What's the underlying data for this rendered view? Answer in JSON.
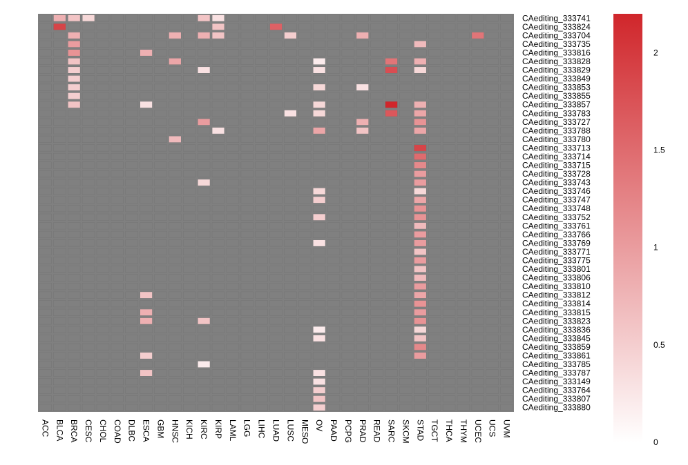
{
  "chart_data": {
    "type": "heatmap",
    "x_categories": [
      "ACC",
      "BLCA",
      "BRCA",
      "CESC",
      "CHOL",
      "COAD",
      "DLBC",
      "ESCA",
      "GBM",
      "HNSC",
      "KICH",
      "KIRC",
      "KIRP",
      "LAML",
      "LGG",
      "LIHC",
      "LUAD",
      "LUSC",
      "MESO",
      "OV",
      "PAAD",
      "PCPG",
      "PRAD",
      "READ",
      "SARC",
      "SKCM",
      "STAD",
      "TGCT",
      "THCA",
      "THYM",
      "UCEC",
      "UCS",
      "UVM"
    ],
    "y_categories": [
      "CAediting_333741",
      "CAediting_333824",
      "CAediting_333704",
      "CAediting_333735",
      "CAediting_333816",
      "CAediting_333828",
      "CAediting_333829",
      "CAediting_333849",
      "CAediting_333853",
      "CAediting_333855",
      "CAediting_333857",
      "CAediting_333783",
      "CAediting_333727",
      "CAediting_333788",
      "CAediting_333780",
      "CAediting_333713",
      "CAediting_333714",
      "CAediting_333715",
      "CAediting_333728",
      "CAediting_333743",
      "CAediting_333746",
      "CAediting_333747",
      "CAediting_333748",
      "CAediting_333752",
      "CAediting_333761",
      "CAediting_333766",
      "CAediting_333769",
      "CAediting_333771",
      "CAediting_333775",
      "CAediting_333801",
      "CAediting_333806",
      "CAediting_333810",
      "CAediting_333812",
      "CAediting_333814",
      "CAediting_333815",
      "CAediting_333823",
      "CAediting_333836",
      "CAediting_333845",
      "CAediting_333859",
      "CAediting_333861",
      "CAediting_333785",
      "CAediting_333787",
      "CAediting_333149",
      "CAediting_333764",
      "CAediting_333807",
      "CAediting_333880"
    ],
    "cells": [
      {
        "row": "CAediting_333741",
        "col": "BLCA",
        "value": 0.8
      },
      {
        "row": "CAediting_333741",
        "col": "BRCA",
        "value": 0.6
      },
      {
        "row": "CAediting_333741",
        "col": "CESC",
        "value": 0.4
      },
      {
        "row": "CAediting_333741",
        "col": "KIRC",
        "value": 0.6
      },
      {
        "row": "CAediting_333741",
        "col": "KIRP",
        "value": 0.3
      },
      {
        "row": "CAediting_333824",
        "col": "BLCA",
        "value": 1.9
      },
      {
        "row": "CAediting_333824",
        "col": "KIRP",
        "value": 0.6
      },
      {
        "row": "CAediting_333824",
        "col": "LUAD",
        "value": 1.6
      },
      {
        "row": "CAediting_333704",
        "col": "BRCA",
        "value": 0.8
      },
      {
        "row": "CAediting_333704",
        "col": "HNSC",
        "value": 0.8
      },
      {
        "row": "CAediting_333704",
        "col": "KIRC",
        "value": 0.8
      },
      {
        "row": "CAediting_333704",
        "col": "KIRP",
        "value": 0.6
      },
      {
        "row": "CAediting_333704",
        "col": "LUSC",
        "value": 0.5
      },
      {
        "row": "CAediting_333704",
        "col": "PRAD",
        "value": 0.8
      },
      {
        "row": "CAediting_333704",
        "col": "UCEC",
        "value": 1.4
      },
      {
        "row": "CAediting_333735",
        "col": "BRCA",
        "value": 1.0
      },
      {
        "row": "CAediting_333735",
        "col": "STAD",
        "value": 0.7
      },
      {
        "row": "CAediting_333816",
        "col": "BRCA",
        "value": 1.1
      },
      {
        "row": "CAediting_333816",
        "col": "ESCA",
        "value": 0.8
      },
      {
        "row": "CAediting_333828",
        "col": "BRCA",
        "value": 0.6
      },
      {
        "row": "CAediting_333828",
        "col": "HNSC",
        "value": 0.9
      },
      {
        "row": "CAediting_333828",
        "col": "OV",
        "value": 0.2
      },
      {
        "row": "CAediting_333828",
        "col": "SARC",
        "value": 1.4
      },
      {
        "row": "CAediting_333828",
        "col": "STAD",
        "value": 0.8
      },
      {
        "row": "CAediting_333829",
        "col": "BRCA",
        "value": 0.5
      },
      {
        "row": "CAediting_333829",
        "col": "KIRC",
        "value": 0.3
      },
      {
        "row": "CAediting_333829",
        "col": "OV",
        "value": 0.3
      },
      {
        "row": "CAediting_333829",
        "col": "SARC",
        "value": 1.8
      },
      {
        "row": "CAediting_333829",
        "col": "STAD",
        "value": 0.4
      },
      {
        "row": "CAediting_333849",
        "col": "BRCA",
        "value": 0.5
      },
      {
        "row": "CAediting_333853",
        "col": "BRCA",
        "value": 0.5
      },
      {
        "row": "CAediting_333853",
        "col": "OV",
        "value": 0.4
      },
      {
        "row": "CAediting_333853",
        "col": "PRAD",
        "value": 0.3
      },
      {
        "row": "CAediting_333855",
        "col": "BRCA",
        "value": 0.5
      },
      {
        "row": "CAediting_333857",
        "col": "BRCA",
        "value": 0.6
      },
      {
        "row": "CAediting_333857",
        "col": "ESCA",
        "value": 0.3
      },
      {
        "row": "CAediting_333857",
        "col": "OV",
        "value": 0.4
      },
      {
        "row": "CAediting_333857",
        "col": "SARC",
        "value": 2.2
      },
      {
        "row": "CAediting_333857",
        "col": "STAD",
        "value": 0.8
      },
      {
        "row": "CAediting_333783",
        "col": "LUSC",
        "value": 0.3
      },
      {
        "row": "CAediting_333783",
        "col": "OV",
        "value": 0.4
      },
      {
        "row": "CAediting_333783",
        "col": "SARC",
        "value": 1.7
      },
      {
        "row": "CAediting_333783",
        "col": "STAD",
        "value": 0.9
      },
      {
        "row": "CAediting_333727",
        "col": "KIRC",
        "value": 1.0
      },
      {
        "row": "CAediting_333727",
        "col": "PRAD",
        "value": 0.8
      },
      {
        "row": "CAediting_333727",
        "col": "STAD",
        "value": 1.1
      },
      {
        "row": "CAediting_333788",
        "col": "KIRP",
        "value": 0.3
      },
      {
        "row": "CAediting_333788",
        "col": "OV",
        "value": 0.9
      },
      {
        "row": "CAediting_333788",
        "col": "PRAD",
        "value": 0.6
      },
      {
        "row": "CAediting_333788",
        "col": "STAD",
        "value": 0.9
      },
      {
        "row": "CAediting_333780",
        "col": "HNSC",
        "value": 0.7
      },
      {
        "row": "CAediting_333713",
        "col": "STAD",
        "value": 1.9
      },
      {
        "row": "CAediting_333714",
        "col": "STAD",
        "value": 1.5
      },
      {
        "row": "CAediting_333715",
        "col": "STAD",
        "value": 1.2
      },
      {
        "row": "CAediting_333728",
        "col": "STAD",
        "value": 1.0
      },
      {
        "row": "CAediting_333743",
        "col": "KIRC",
        "value": 0.4
      },
      {
        "row": "CAediting_333743",
        "col": "STAD",
        "value": 1.0
      },
      {
        "row": "CAediting_333746",
        "col": "OV",
        "value": 0.4
      },
      {
        "row": "CAediting_333746",
        "col": "STAD",
        "value": 0.4
      },
      {
        "row": "CAediting_333747",
        "col": "OV",
        "value": 0.5
      },
      {
        "row": "CAediting_333747",
        "col": "STAD",
        "value": 0.9
      },
      {
        "row": "CAediting_333748",
        "col": "STAD",
        "value": 1.1
      },
      {
        "row": "CAediting_333752",
        "col": "OV",
        "value": 0.5
      },
      {
        "row": "CAediting_333752",
        "col": "STAD",
        "value": 1.1
      },
      {
        "row": "CAediting_333761",
        "col": "STAD",
        "value": 0.7
      },
      {
        "row": "CAediting_333766",
        "col": "STAD",
        "value": 1.0
      },
      {
        "row": "CAediting_333769",
        "col": "OV",
        "value": 0.3
      },
      {
        "row": "CAediting_333769",
        "col": "STAD",
        "value": 1.0
      },
      {
        "row": "CAediting_333771",
        "col": "STAD",
        "value": 0.6
      },
      {
        "row": "CAediting_333775",
        "col": "STAD",
        "value": 1.0
      },
      {
        "row": "CAediting_333801",
        "col": "STAD",
        "value": 0.6
      },
      {
        "row": "CAediting_333806",
        "col": "STAD",
        "value": 0.7
      },
      {
        "row": "CAediting_333810",
        "col": "STAD",
        "value": 1.0
      },
      {
        "row": "CAediting_333812",
        "col": "ESCA",
        "value": 0.6
      },
      {
        "row": "CAediting_333812",
        "col": "STAD",
        "value": 0.9
      },
      {
        "row": "CAediting_333814",
        "col": "STAD",
        "value": 1.1
      },
      {
        "row": "CAediting_333815",
        "col": "ESCA",
        "value": 0.8
      },
      {
        "row": "CAediting_333815",
        "col": "STAD",
        "value": 1.0
      },
      {
        "row": "CAediting_333823",
        "col": "ESCA",
        "value": 0.8
      },
      {
        "row": "CAediting_333823",
        "col": "KIRC",
        "value": 0.6
      },
      {
        "row": "CAediting_333823",
        "col": "STAD",
        "value": 1.1
      },
      {
        "row": "CAediting_333836",
        "col": "OV",
        "value": 0.2
      },
      {
        "row": "CAediting_333836",
        "col": "STAD",
        "value": 0.4
      },
      {
        "row": "CAediting_333845",
        "col": "OV",
        "value": 0.3
      },
      {
        "row": "CAediting_333845",
        "col": "STAD",
        "value": 0.6
      },
      {
        "row": "CAediting_333859",
        "col": "STAD",
        "value": 1.2
      },
      {
        "row": "CAediting_333861",
        "col": "ESCA",
        "value": 0.5
      },
      {
        "row": "CAediting_333861",
        "col": "STAD",
        "value": 1.0
      },
      {
        "row": "CAediting_333785",
        "col": "KIRC",
        "value": 0.2
      },
      {
        "row": "CAediting_333787",
        "col": "ESCA",
        "value": 0.6
      },
      {
        "row": "CAediting_333787",
        "col": "OV",
        "value": 0.3
      },
      {
        "row": "CAediting_333149",
        "col": "OV",
        "value": 0.3
      },
      {
        "row": "CAediting_333764",
        "col": "OV",
        "value": 0.5
      },
      {
        "row": "CAediting_333807",
        "col": "OV",
        "value": 0.6
      },
      {
        "row": "CAediting_333880",
        "col": "OV",
        "value": 0.5
      }
    ],
    "missing_color": "#808080",
    "colorscale": {
      "low": "#ffffff",
      "high": "#d0262b",
      "min": 0,
      "max": 2.2
    },
    "colorbar_ticks": [
      {
        "value": 0,
        "label": "0"
      },
      {
        "value": 0.5,
        "label": "0.5"
      },
      {
        "value": 1,
        "label": "1"
      },
      {
        "value": 1.5,
        "label": "1.5"
      },
      {
        "value": 2,
        "label": "2"
      }
    ],
    "legend_position": "right",
    "title": "",
    "xlabel": "",
    "ylabel": ""
  }
}
